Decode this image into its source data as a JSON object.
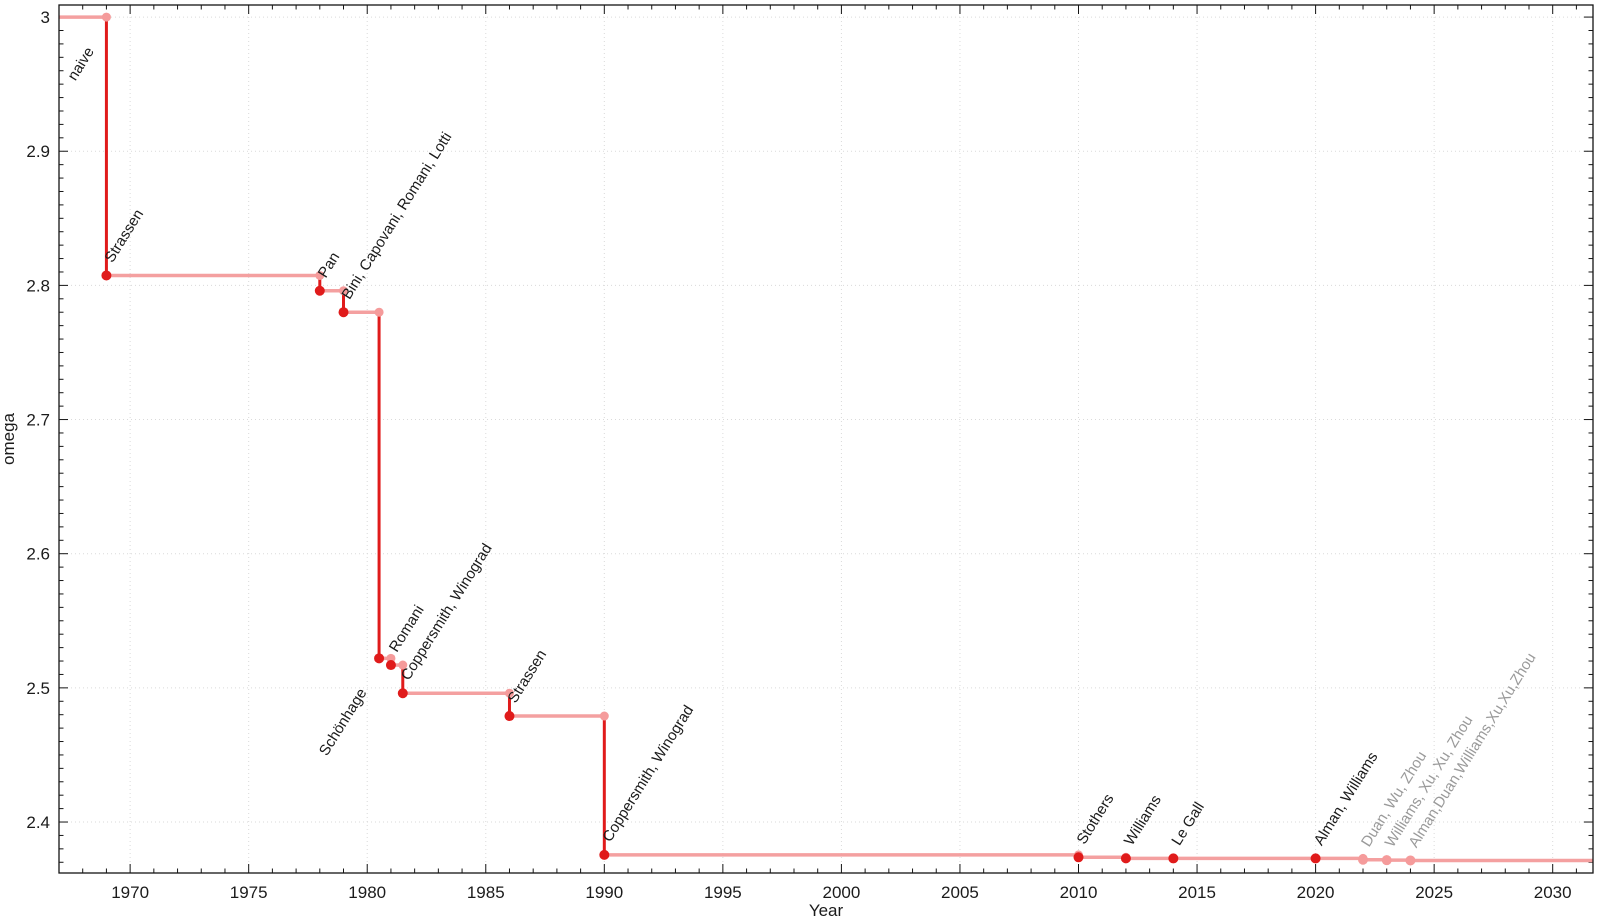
{
  "figure": {
    "background": "#ffffff",
    "title": ""
  },
  "chart_data": {
    "type": "line",
    "subtype": "step-post",
    "title": "",
    "xlabel": "Year",
    "ylabel": "omega",
    "legend": "none",
    "grid": "dotted-major-both-axes",
    "x_domain": [
      1967,
      2031.7
    ],
    "y_domain": [
      2.362,
      3.009
    ],
    "x_ticks": {
      "values": [
        1970,
        1975,
        1980,
        1985,
        1990,
        1995,
        2000,
        2005,
        2010,
        2015,
        2020,
        2025,
        2030
      ],
      "labels": [
        "1970",
        "1975",
        "1980",
        "1985",
        "1990",
        "1995",
        "2000",
        "2005",
        "2010",
        "2015",
        "2020",
        "2025",
        "2030"
      ]
    },
    "y_ticks": {
      "values": [
        2.4,
        2.5,
        2.6,
        2.7,
        2.8,
        2.9,
        3
      ],
      "labels": [
        "2.4",
        "2.5",
        "2.6",
        "2.7",
        "2.8",
        "2.9",
        "3"
      ]
    },
    "x_minor_step": 1,
    "y_minor_step": 0.01,
    "start": {
      "omega": 3,
      "label": "naive",
      "label_side": "below"
    },
    "points": [
      {
        "year": 1969,
        "omega": 2.8074,
        "label": "Strassen"
      },
      {
        "year": 1978,
        "omega": 2.796,
        "label": "Pan"
      },
      {
        "year": 1979,
        "omega": 2.78,
        "label": "Bini, Capovani, Romani, Lotti"
      },
      {
        "year": 1980.5,
        "omega": 2.522,
        "label": "Schönhage",
        "label_side": "below"
      },
      {
        "year": 1981,
        "omega": 2.517,
        "label": "Romani"
      },
      {
        "year": 1981.5,
        "omega": 2.496,
        "label": "Coppersmith, Winograd"
      },
      {
        "year": 1986,
        "omega": 2.479,
        "label": "Strassen"
      },
      {
        "year": 1990,
        "omega": 2.3755,
        "label": "Coppersmith, Winograd"
      },
      {
        "year": 2010,
        "omega": 2.3737,
        "label": "Stothers"
      },
      {
        "year": 2012,
        "omega": 2.3729,
        "label": "Williams"
      },
      {
        "year": 2014,
        "omega": 2.3728639,
        "label": "Le Gall"
      },
      {
        "year": 2020,
        "omega": 2.3728596,
        "label": "Alman, Williams"
      },
      {
        "year": 2022,
        "omega": 2.37188,
        "label": "Duan, Wu, Zhou",
        "muted": true
      },
      {
        "year": 2023,
        "omega": 2.371552,
        "label": "Williams, Xu, Xu, Zhou",
        "muted": true
      },
      {
        "year": 2024,
        "omega": 2.371339,
        "label": "Alman,Duan,Williams,Xu,Xu,Zhou",
        "muted": true
      }
    ],
    "colors": {
      "line_dark": "#e01b1b",
      "line_light": "#f4a0a0",
      "marker_dark": "#e01b1b",
      "marker_light": "#f59b9b",
      "grid": "#dadada",
      "axis": "#141414",
      "text": "#1b1b1b",
      "text_muted": "#9a9a9a"
    },
    "label_rotation_deg": -58
  }
}
